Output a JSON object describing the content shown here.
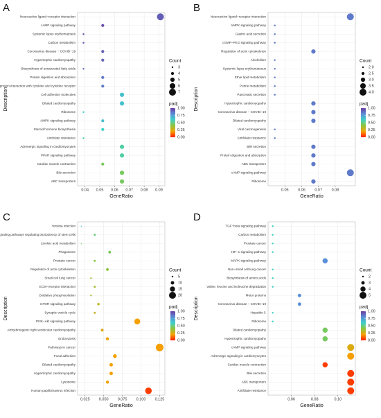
{
  "chart_data": [
    {
      "type": "dot",
      "panel_label": "A",
      "xlabel": "GeneRatio",
      "ylabel": "Description",
      "categories": [
        "Neuroactive ligand−receptor interaction",
        "cAMP signaling pathway",
        "Systemic lupus erythematosus",
        "Carbon metabolism",
        "Coronavirus disease − COVID−19",
        "Hypertrophic cardiomyopathy",
        "Biosynthesis of unsaturated fatty acids",
        "Protein digestion and absorption",
        "Viral protein interaction with cytokine and cytokine receptor",
        "Cell adhesion molecules",
        "Dilated cardiomyopathy",
        "Ribosome",
        "AMPK signaling pathway",
        "Steroid hormone biosynthesis",
        "Antifolate resistance",
        "Adrenergic signaling in cardiomyocytes",
        "PPAR signaling pathway",
        "Cardiac muscle contraction",
        "Bile secretion",
        "ABC transporters"
      ],
      "gene_ratio": [
        0.091,
        0.052,
        0.039,
        0.039,
        0.052,
        0.052,
        0.039,
        0.052,
        0.052,
        0.065,
        0.065,
        0.039,
        0.052,
        0.052,
        0.039,
        0.065,
        0.065,
        0.052,
        0.065,
        0.065
      ],
      "count": [
        7,
        4,
        3,
        3,
        4,
        4,
        3,
        4,
        4,
        5,
        5,
        3,
        4,
        4,
        3,
        5,
        5,
        4,
        5,
        5
      ],
      "padj": [
        0.92,
        0.95,
        0.95,
        0.95,
        0.92,
        0.9,
        0.9,
        0.85,
        0.85,
        0.65,
        0.65,
        0.6,
        0.65,
        0.6,
        0.55,
        0.55,
        0.55,
        0.45,
        0.45,
        0.45
      ],
      "xlim": [
        0.035,
        0.094
      ],
      "xticks": [
        0.04,
        0.05,
        0.06,
        0.07,
        0.08,
        0.09
      ],
      "size_title": "Count",
      "size_ticks": [
        3,
        4,
        5,
        6,
        7
      ],
      "color_title": "padj",
      "color_ticks": [
        {
          "value": 0,
          "label": "0.00"
        },
        {
          "value": 0.25,
          "label": "0.25"
        },
        {
          "value": 0.5,
          "label": "0.50"
        },
        {
          "value": 0.75,
          "label": "0.75"
        },
        {
          "value": 1,
          "label": "1.00"
        }
      ],
      "colormap": [
        "#ff1a00",
        "#f5a000",
        "#8cc63f",
        "#3fd1c8",
        "#5b8fd8",
        "#6a3ca0"
      ],
      "grid": true
    },
    {
      "type": "dot",
      "panel_label": "B",
      "xlabel": "GeneRatio",
      "ylabel": "Description",
      "categories": [
        "Neuroactive ligand−receptor interaction",
        "AMPK signaling pathway",
        "Gastric acid secretion",
        "cGMP−PKG signaling pathway",
        "Regulation of actin cytoskeleton",
        "Alcoholism",
        "Systemic lupus erythematosus",
        "Ether lipid metabolism",
        "Purine metabolism",
        "Pancreatic secretion",
        "Hypertrophic cardiomyopathy",
        "Coronavirus disease − COVID−19",
        "Dilated cardiomyopathy",
        "Viral carcinogenesis",
        "Antifolate resistance",
        "Bile secretion",
        "Protein digestion and absorption",
        "ABC transporters",
        "cAMP signaling pathway",
        "Ribosome"
      ],
      "gene_ratio": [
        0.089,
        0.044,
        0.044,
        0.044,
        0.067,
        0.044,
        0.044,
        0.044,
        0.044,
        0.044,
        0.067,
        0.067,
        0.067,
        0.044,
        0.044,
        0.067,
        0.067,
        0.067,
        0.089,
        0.067
      ],
      "count": [
        4,
        2,
        2,
        2,
        3,
        2,
        2,
        2,
        2,
        2,
        3,
        3,
        3,
        2,
        2,
        3,
        3,
        3,
        4,
        3
      ],
      "padj": [
        0.85,
        0.85,
        0.85,
        0.85,
        0.85,
        0.85,
        0.85,
        0.85,
        0.85,
        0.85,
        0.85,
        0.85,
        0.85,
        0.85,
        0.85,
        0.85,
        0.85,
        0.85,
        0.85,
        0.85
      ],
      "xlim": [
        0.04,
        0.092
      ],
      "xticks": [
        0.05,
        0.06,
        0.07,
        0.08
      ],
      "size_title": "Count",
      "size_ticks": [
        {
          "value": 2,
          "label": "2.0"
        },
        {
          "value": 2.5,
          "label": "2.5"
        },
        {
          "value": 3,
          "label": "3.0"
        },
        {
          "value": 3.5,
          "label": "3.5"
        },
        {
          "value": 4,
          "label": "4.0"
        }
      ],
      "color_title": "padj",
      "color_ticks": [
        {
          "value": 0,
          "label": "0.00"
        },
        {
          "value": 0.25,
          "label": "0.25"
        },
        {
          "value": 0.5,
          "label": "0.50"
        },
        {
          "value": 0.75,
          "label": "0.75"
        },
        {
          "value": 1,
          "label": "1.00"
        }
      ],
      "colormap": [
        "#ff1a00",
        "#f5a000",
        "#8cc63f",
        "#3fd1c8",
        "#5b8fd8",
        "#6a3ca0"
      ],
      "grid": true
    },
    {
      "type": "dot",
      "panel_label": "C",
      "xlabel": "GeneRatio",
      "ylabel": "Description",
      "categories": [
        "Yersinia infection",
        "Signaling pathways regulating pluripotency of stem cells",
        "Linoleic acid metabolism",
        "Phagosome",
        "Prostate cancer",
        "Regulation of actin cytoskeleton",
        "Small cell lung cancer",
        "ECM−receptor interaction",
        "Oxidative phosphorylation",
        "mTOR signaling pathway",
        "Synaptic vesicle cycle",
        "PI3K−Akt signaling pathway",
        "Arrhythmogenic right ventricular cardiomyopathy",
        "Endocytosis",
        "Pathways in cancer",
        "Focal adhesion",
        "Dilated cardiomyopathy",
        "Hypertrophic cardiomyopathy",
        "Lysosome",
        "Human papillomavirus infection"
      ],
      "gene_ratio": [
        0.02,
        0.038,
        0.02,
        0.058,
        0.038,
        0.055,
        0.033,
        0.038,
        0.033,
        0.043,
        0.038,
        0.095,
        0.048,
        0.055,
        0.125,
        0.065,
        0.06,
        0.06,
        0.055,
        0.11
      ],
      "count": [
        3,
        6,
        3,
        8,
        6,
        8,
        5,
        6,
        5,
        7,
        6,
        17,
        8,
        9,
        22,
        11,
        10,
        10,
        9,
        19
      ],
      "padj": [
        0.65,
        0.5,
        0.45,
        0.45,
        0.4,
        0.4,
        0.35,
        0.35,
        0.35,
        0.3,
        0.3,
        0.2,
        0.25,
        0.22,
        0.2,
        0.2,
        0.2,
        0.2,
        0.22,
        0.05
      ],
      "xlim": [
        0.015,
        0.132
      ],
      "xticks": [
        0.025,
        {
          "value": 0.05,
          "label": "0.050"
        },
        0.075,
        {
          "value": 0.1,
          "label": "0.100"
        },
        0.125
      ],
      "size_title": "Count",
      "size_ticks": [
        5,
        10,
        15,
        20
      ],
      "color_title": "padj",
      "color_ticks": [
        {
          "value": 0,
          "label": "0.00"
        },
        {
          "value": 0.25,
          "label": "0.25"
        },
        {
          "value": 0.5,
          "label": "0.50"
        },
        {
          "value": 0.75,
          "label": "0.75"
        },
        {
          "value": 1,
          "label": "1.00"
        }
      ],
      "colormap": [
        "#ff1a00",
        "#f5a000",
        "#8cc63f",
        "#3fd1c8",
        "#5b8fd8",
        "#6a3ca0"
      ],
      "grid": true
    },
    {
      "type": "dot",
      "panel_label": "D",
      "xlabel": "GeneRatio",
      "ylabel": "Description",
      "categories": [
        "TGF−beta signaling pathway",
        "Carbon metabolism",
        "Prostate cancer",
        "HIF−1 signaling pathway",
        "MAPK signaling pathway",
        "Non−small cell lung cancer",
        "Biosynthesis of amino acids",
        "Valine, leucine and isoleucine degradation",
        "Motor proteins",
        "Coronavirus disease − COVID−19",
        "Hepatitis C",
        "Ribosome",
        "Dilated cardiomyopathy",
        "Hypertrophic cardiomyopathy",
        "cAMP signaling pathway",
        "Adrenergic signaling in cardiomyocytes",
        "Cardiac muscle contraction",
        "Bile secretion",
        "ABC transporters",
        "Antifolate resistance"
      ],
      "gene_ratio": [
        0.044,
        0.044,
        0.044,
        0.044,
        0.089,
        0.044,
        0.044,
        0.044,
        0.067,
        0.067,
        0.044,
        0.044,
        0.089,
        0.089,
        0.111,
        0.111,
        0.089,
        0.111,
        0.111,
        0.111
      ],
      "count": [
        2,
        2,
        2,
        2,
        4,
        2,
        2,
        2,
        3,
        3,
        2,
        2,
        4,
        4,
        5,
        5,
        4,
        5,
        5,
        5
      ],
      "padj": [
        0.6,
        0.6,
        0.6,
        0.6,
        0.8,
        0.6,
        0.6,
        0.6,
        0.8,
        0.8,
        0.6,
        0.6,
        0.45,
        0.45,
        0.25,
        0.2,
        0.05,
        0.05,
        0.05,
        0.05
      ],
      "xlim": [
        0.04,
        0.115
      ],
      "xticks": [
        0.06,
        0.08,
        {
          "value": 0.1,
          "label": "0.10"
        }
      ],
      "size_title": "Count",
      "size_ticks": [
        2,
        3,
        4,
        5
      ],
      "color_title": "padj",
      "color_ticks": [
        {
          "value": 0,
          "label": "0.00"
        },
        {
          "value": 0.25,
          "label": "0.25"
        },
        {
          "value": 0.5,
          "label": "0.50"
        },
        {
          "value": 0.75,
          "label": "0.75"
        },
        {
          "value": 1,
          "label": "1.00"
        }
      ],
      "colormap": [
        "#ff1a00",
        "#f5a000",
        "#8cc63f",
        "#3fd1c8",
        "#5b8fd8",
        "#6a3ca0"
      ],
      "grid": true
    }
  ]
}
